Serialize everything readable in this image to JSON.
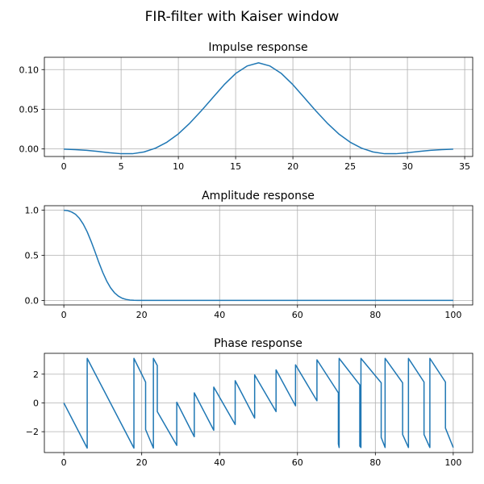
{
  "title": "FIR-filter with Kaiser window",
  "colors": {
    "line": "#1f77b4",
    "grid": "#b0b0b0",
    "axis": "#000000"
  },
  "chart_data": [
    {
      "type": "line",
      "title": "Impulse response",
      "xlabel": "",
      "ylabel": "",
      "xlim": [
        -1.7,
        35.7
      ],
      "ylim": [
        -0.0095,
        0.1155
      ],
      "grid": true,
      "xticks": [
        0,
        5,
        10,
        15,
        20,
        25,
        30,
        35
      ],
      "yticks": [
        0.0,
        0.05,
        0.1
      ],
      "xtick_labels": [
        "0",
        "5",
        "10",
        "15",
        "20",
        "25",
        "30",
        "35"
      ],
      "ytick_labels": [
        "0.00",
        "0.05",
        "0.10"
      ],
      "series": [
        {
          "x": [
            0,
            1,
            2,
            3,
            4,
            5,
            6,
            7,
            8,
            9,
            10,
            11,
            12,
            13,
            14,
            15,
            16,
            17,
            18,
            19,
            20,
            21,
            22,
            23,
            24,
            25,
            26,
            27,
            28,
            29,
            30,
            31,
            32,
            33,
            34
          ],
          "y": [
            -0.0002,
            -0.0008,
            -0.0018,
            -0.0032,
            -0.0048,
            -0.006,
            -0.006,
            -0.0038,
            0.001,
            0.0085,
            0.019,
            0.0325,
            0.048,
            0.0645,
            0.081,
            0.095,
            0.1045,
            0.1085,
            0.1045,
            0.095,
            0.081,
            0.0645,
            0.048,
            0.0325,
            0.019,
            0.0085,
            0.001,
            -0.0038,
            -0.006,
            -0.006,
            -0.0048,
            -0.0032,
            -0.0018,
            -0.0008,
            -0.0002
          ]
        }
      ]
    },
    {
      "type": "line",
      "title": "Amplitude response",
      "xlabel": "",
      "ylabel": "",
      "xlim": [
        -5,
        105
      ],
      "ylim": [
        -0.05,
        1.05
      ],
      "grid": true,
      "xticks": [
        0,
        20,
        40,
        60,
        80,
        100
      ],
      "yticks": [
        0.0,
        0.5,
        1.0
      ],
      "xtick_labels": [
        "0",
        "20",
        "40",
        "60",
        "80",
        "100"
      ],
      "ytick_labels": [
        "0.0",
        "0.5",
        "1.0"
      ],
      "series": [
        {
          "x": [
            0,
            1,
            2,
            3,
            4,
            5,
            6,
            7,
            8,
            9,
            10,
            11,
            12,
            13,
            14,
            15,
            16,
            17,
            18,
            19,
            20,
            21,
            22,
            25,
            30,
            40,
            50,
            60,
            70,
            80,
            90,
            100
          ],
          "y": [
            1.0,
            0.995,
            0.98,
            0.955,
            0.91,
            0.845,
            0.76,
            0.655,
            0.54,
            0.42,
            0.31,
            0.215,
            0.14,
            0.085,
            0.048,
            0.024,
            0.011,
            0.004,
            0.0015,
            0.0005,
            0.0001,
            0,
            0,
            0,
            0,
            0,
            0,
            0,
            0,
            0,
            0,
            0
          ]
        }
      ]
    },
    {
      "type": "line",
      "title": "Phase response",
      "xlabel": "",
      "ylabel": "",
      "xlim": [
        -5,
        105
      ],
      "ylim": [
        -3.45,
        3.45
      ],
      "grid": true,
      "xticks": [
        0,
        20,
        40,
        60,
        80,
        100
      ],
      "yticks": [
        -2,
        0,
        2
      ],
      "xtick_labels": [
        "0",
        "20",
        "40",
        "60",
        "80",
        "100"
      ],
      "ytick_labels": [
        "−2",
        "0",
        "2"
      ],
      "series": [
        {
          "x": [
            0,
            6,
            6,
            18,
            18,
            21,
            21,
            23,
            23,
            24,
            24,
            29,
            29,
            33.5,
            33.5,
            38.5,
            38.5,
            44,
            44,
            49,
            49,
            54.5,
            54.5,
            59.5,
            59.5,
            65,
            65,
            70.5,
            70.5,
            70.7,
            70.7,
            76,
            76,
            76.3,
            76.3,
            81.5,
            81.5,
            82.5,
            82.5,
            87,
            87,
            88.5,
            88.5,
            92.5,
            92.5,
            94,
            94,
            98,
            98,
            100
          ],
          "y": [
            0,
            -3.14,
            3.1,
            -3.14,
            3.1,
            1.45,
            -1.85,
            -3.14,
            3.1,
            2.6,
            -0.6,
            -2.95,
            0.05,
            -2.35,
            0.7,
            -1.9,
            1.1,
            -1.5,
            1.55,
            -1.05,
            1.95,
            -0.6,
            2.3,
            -0.2,
            2.65,
            0.15,
            3.0,
            0.7,
            -2.85,
            -3.1,
            3.1,
            1.25,
            -3.0,
            -3.1,
            3.1,
            1.4,
            -2.4,
            -3.1,
            3.1,
            1.4,
            -2.2,
            -3.1,
            3.1,
            1.45,
            -2.2,
            -3.1,
            3.1,
            1.45,
            -1.75,
            -3.1
          ]
        }
      ]
    }
  ]
}
